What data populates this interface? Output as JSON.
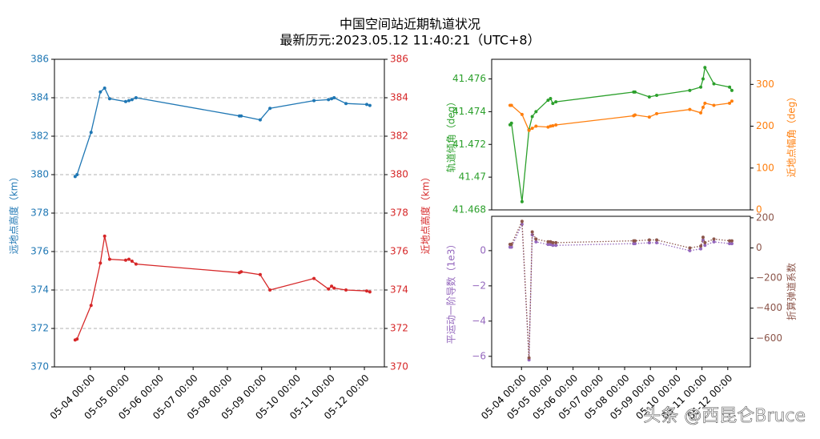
{
  "title": "中国空间站近期轨道状况",
  "subtitle": "最新历元:2023.05.12 11:40:21（UTC+8）",
  "watermark": "头条 @西昆仑Bruce",
  "chart_data": [
    {
      "type": "line",
      "x": [
        "05-03 13:20",
        "05-03 14:40",
        "05-04 00:30",
        "05-04 07:00",
        "05-04 10:00",
        "05-04 13:30",
        "05-05 00:45",
        "05-05 03:00",
        "05-05 05:10",
        "05-05 08:00",
        "05-08 08:25",
        "05-08 09:40",
        "05-08 23:00",
        "05-09 05:50",
        "05-10 12:40",
        "05-10 22:50",
        "05-11 01:00",
        "05-11 02:45",
        "05-11 11:05",
        "05-12 01:40",
        "05-12 03:50"
      ],
      "xlim": [
        "05-02 22:50",
        "05-12 14:00"
      ],
      "xticks": [
        "05-04 00:00",
        "05-05 00:00",
        "05-06 00:00",
        "05-07 00:00",
        "05-08 00:00",
        "05-09 00:00",
        "05-10 00:00",
        "05-11 00:00",
        "05-12 00:00"
      ],
      "ylabel": "远地点高度（km）",
      "y2label": "近地点高度（km）",
      "ylim": [
        370,
        386
      ],
      "yticks": [
        370,
        372,
        374,
        376,
        378,
        380,
        382,
        384,
        386
      ],
      "y2lim": [
        370,
        386
      ],
      "y2ticks": [
        370,
        372,
        374,
        376,
        378,
        380,
        382,
        384,
        386
      ],
      "grid": true,
      "series": [
        {
          "color": "#1f77b4",
          "axis": "y",
          "values": [
            379.9,
            380.0,
            382.2,
            384.3,
            384.5,
            383.95,
            383.8,
            383.85,
            383.9,
            384.0,
            383.05,
            383.05,
            382.85,
            383.45,
            383.85,
            383.9,
            383.95,
            384.0,
            383.7,
            383.65,
            383.6
          ]
        },
        {
          "color": "#d62728",
          "axis": "y2",
          "values": [
            371.4,
            371.45,
            373.2,
            375.4,
            376.8,
            375.6,
            375.55,
            375.6,
            375.5,
            375.35,
            374.9,
            374.95,
            374.8,
            374.0,
            374.6,
            374.05,
            374.2,
            374.1,
            374.0,
            373.95,
            373.9
          ]
        }
      ]
    },
    {
      "type": "line",
      "x": [
        "05-03 13:20",
        "05-03 14:40",
        "05-04 00:30",
        "05-04 07:00",
        "05-04 10:00",
        "05-04 13:30",
        "05-05 00:45",
        "05-05 03:00",
        "05-05 05:10",
        "05-05 08:00",
        "05-08 08:25",
        "05-08 09:40",
        "05-08 23:00",
        "05-09 05:50",
        "05-10 12:40",
        "05-10 22:50",
        "05-11 01:00",
        "05-11 02:45",
        "05-11 11:05",
        "05-12 01:40",
        "05-12 03:50"
      ],
      "xlim": [
        "05-02 20:15",
        "05-12 21:00"
      ],
      "ylabel": "轨道倾角（deg）",
      "y2label": "近地点幅角（deg）",
      "ylim": [
        41.468,
        41.4772
      ],
      "yticks": [
        41.468,
        41.47,
        41.472,
        41.474,
        41.476
      ],
      "y2lim": [
        0,
        360
      ],
      "y2ticks": [
        0,
        100,
        200,
        300
      ],
      "grid": false,
      "series": [
        {
          "color": "#2ca02c",
          "axis": "y",
          "values": [
            41.4732,
            41.4733,
            41.4685,
            41.4729,
            41.4737,
            41.474,
            41.4747,
            41.4748,
            41.4745,
            41.4746,
            41.4752,
            41.4752,
            41.4749,
            41.475,
            41.4753,
            41.4755,
            41.476,
            41.4767,
            41.4757,
            41.4755,
            41.4753
          ]
        },
        {
          "color": "#ff7f0e",
          "axis": "y2",
          "values": [
            250,
            250,
            228,
            190,
            195,
            200,
            198,
            200,
            201,
            203,
            225,
            227,
            222,
            230,
            240,
            232,
            245,
            255,
            250,
            255,
            260
          ]
        }
      ]
    },
    {
      "type": "line",
      "x": [
        "05-03 13:20",
        "05-03 14:40",
        "05-04 00:30",
        "05-04 07:00",
        "05-04 10:00",
        "05-04 13:30",
        "05-05 00:45",
        "05-05 03:00",
        "05-05 05:10",
        "05-05 08:00",
        "05-08 08:25",
        "05-08 09:40",
        "05-08 23:00",
        "05-09 05:50",
        "05-10 12:40",
        "05-10 22:50",
        "05-11 01:00",
        "05-11 02:45",
        "05-11 11:05",
        "05-12 01:40",
        "05-12 03:50"
      ],
      "xlim": [
        "05-02 20:15",
        "05-12 21:00"
      ],
      "xticks": [
        "05-04 00:00",
        "05-05 00:00",
        "05-06 00:00",
        "05-07 00:00",
        "05-08 00:00",
        "05-09 00:00",
        "05-10 00:00",
        "05-11 00:00",
        "05-12 00:00"
      ],
      "ylabel": "平运动一阶导数（1e3）",
      "y2label": "折算弹道系数",
      "ylim": [
        -6.6,
        1.95
      ],
      "yticks": [
        {
          "value": -6,
          "label": "−6"
        },
        {
          "value": -4,
          "label": "−4"
        },
        {
          "value": -2,
          "label": "−2"
        },
        0
      ],
      "y2lim": [
        -790,
        210
      ],
      "y2ticks": [
        {
          "value": -600,
          "label": "−600"
        },
        {
          "value": -400,
          "label": "−400"
        },
        {
          "value": -200,
          "label": "−200"
        },
        0,
        200
      ],
      "grid": false,
      "series": [
        {
          "color": "#9467bd",
          "axis": "y",
          "linestyle": "dotted",
          "values": [
            0.2,
            0.2,
            1.5,
            -6.2,
            0.9,
            0.5,
            0.35,
            0.35,
            0.3,
            0.3,
            0.4,
            0.4,
            0.45,
            0.45,
            0,
            0.1,
            0.6,
            0.3,
            0.5,
            0.4,
            0.4
          ]
        },
        {
          "color": "#8c564b",
          "axis": "y2",
          "linestyle": "dotted",
          "values": [
            24,
            24,
            177,
            -730,
            106,
            59,
            41,
            41,
            35,
            35,
            47,
            47,
            53,
            53,
            0,
            12,
            71,
            35,
            59,
            47,
            47
          ]
        }
      ]
    }
  ]
}
